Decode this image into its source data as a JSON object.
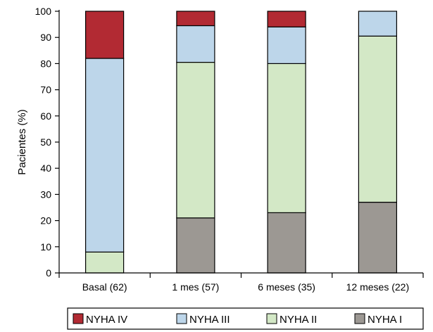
{
  "chart_data": {
    "type": "bar",
    "stacked": true,
    "categories": [
      "Basal (62)",
      "1 mes (57)",
      "6 meses (35)",
      "12 meses (22)"
    ],
    "series": [
      {
        "name": "NYHA I",
        "values": [
          0,
          21,
          23,
          27
        ],
        "color": "#9c9893"
      },
      {
        "name": "NYHA II",
        "values": [
          8,
          59.5,
          57,
          63.5
        ],
        "color": "#d3e8c6"
      },
      {
        "name": "NYHA III",
        "values": [
          74,
          14,
          14,
          9.5
        ],
        "color": "#bdd6ea"
      },
      {
        "name": "NYHA IV",
        "values": [
          18,
          5.5,
          6,
          0
        ],
        "color": "#b22a33"
      }
    ],
    "legend_order": [
      "NYHA IV",
      "NYHA III",
      "NYHA II",
      "NYHA I"
    ],
    "ylabel": "Pacientes (%)",
    "xlabel": "",
    "ylim": [
      0,
      100
    ],
    "yticks": [
      "0",
      "10",
      "20",
      "30",
      "40",
      "50",
      "60",
      "70",
      "80",
      "90",
      "100"
    ],
    "grid": false,
    "legend_position": "bottom"
  }
}
